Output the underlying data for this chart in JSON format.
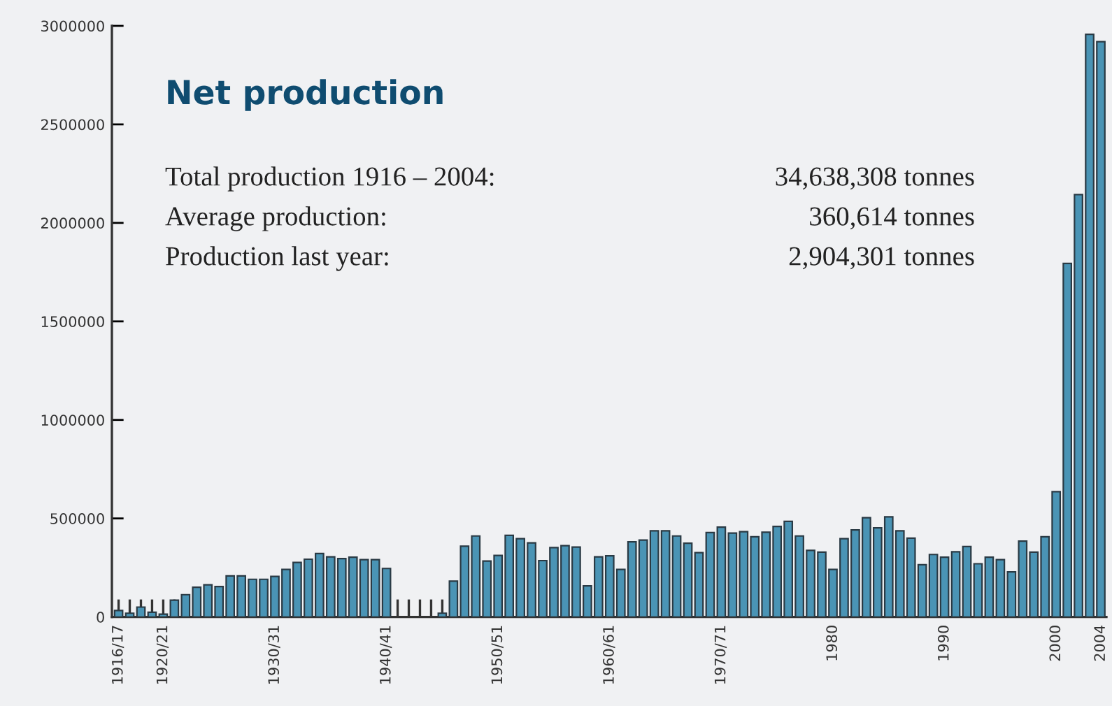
{
  "chart_data": {
    "type": "bar",
    "title": "Net production",
    "annotations": [
      "Total production 1916 – 2004:",
      "34,638,308 tonnes",
      "Average production:",
      "360,614 tonnes",
      "Production last year:",
      "2,904,301 tonnes"
    ],
    "categories": [
      "1916/17",
      null,
      null,
      null,
      "1920/21",
      null,
      null,
      null,
      null,
      null,
      null,
      null,
      null,
      null,
      "1930/31",
      null,
      null,
      null,
      null,
      null,
      null,
      null,
      null,
      null,
      "1940/41",
      null,
      null,
      null,
      null,
      null,
      null,
      null,
      null,
      null,
      "1950/51",
      null,
      null,
      null,
      null,
      null,
      null,
      null,
      null,
      null,
      "1960/61",
      null,
      null,
      null,
      null,
      null,
      null,
      null,
      null,
      null,
      "1970/71",
      null,
      null,
      null,
      null,
      null,
      null,
      null,
      null,
      null,
      "1980",
      null,
      null,
      null,
      null,
      null,
      null,
      null,
      null,
      null,
      "1990",
      null,
      null,
      null,
      null,
      null,
      null,
      null,
      null,
      null,
      "2000",
      null,
      null,
      null,
      "2004"
    ],
    "values": [
      33000,
      19000,
      50000,
      24000,
      14000,
      85000,
      113000,
      151000,
      163000,
      154000,
      208000,
      208000,
      191000,
      191000,
      206000,
      241000,
      277000,
      293000,
      322000,
      305000,
      296000,
      303000,
      291000,
      291000,
      246000,
      null,
      null,
      null,
      null,
      19000,
      182000,
      359000,
      411000,
      284000,
      312000,
      414000,
      397000,
      376000,
      286000,
      352000,
      362000,
      355000,
      158000,
      305000,
      310000,
      241000,
      381000,
      390000,
      437000,
      437000,
      411000,
      374000,
      326000,
      428000,
      456000,
      426000,
      433000,
      407000,
      430000,
      459000,
      485000,
      411000,
      338000,
      329000,
      241000,
      397000,
      442000,
      504000,
      452000,
      508000,
      437000,
      400000,
      265000,
      317000,
      303000,
      331000,
      357000,
      270000,
      303000,
      291000,
      229000,
      385000,
      329000,
      407000,
      636000,
      1794000,
      2144000,
      2957000,
      2920000
    ],
    "color": "#4a94b5",
    "ylim": [
      0,
      3000000
    ],
    "yticks": [
      0,
      500000,
      1000000,
      1500000,
      2000000,
      2500000,
      3000000
    ],
    "grid": false
  }
}
